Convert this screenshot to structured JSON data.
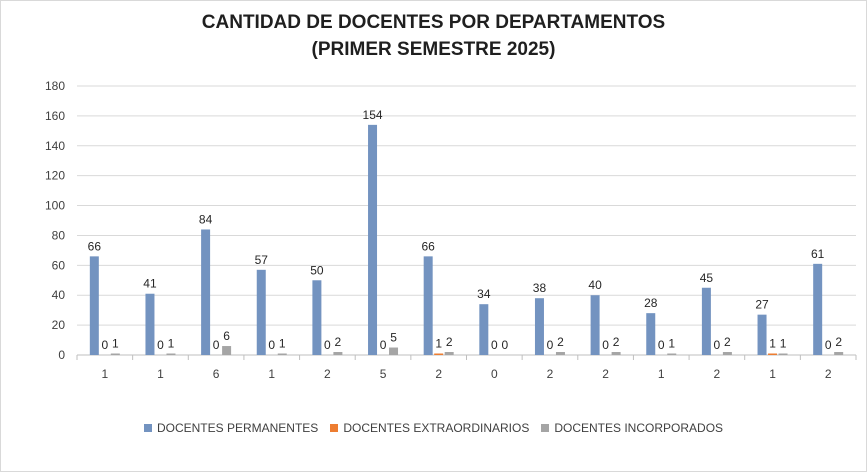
{
  "chart_data": {
    "type": "bar",
    "title": [
      "CANTIDAD DE DOCENTES POR DEPARTAMENTOS",
      "(PRIMER SEMESTRE 2025)"
    ],
    "categories": [
      "1",
      "1",
      "6",
      "1",
      "2",
      "5",
      "2",
      "0",
      "2",
      "2",
      "1",
      "2",
      "1",
      "2"
    ],
    "series": [
      {
        "name": "DOCENTES PERMANENTES",
        "color": "#7393c0",
        "values": [
          66,
          41,
          84,
          57,
          50,
          154,
          66,
          34,
          38,
          40,
          28,
          45,
          27,
          61
        ]
      },
      {
        "name": "DOCENTES EXTRAORDINARIOS",
        "color": "#ed7d31",
        "values": [
          0,
          0,
          0,
          0,
          0,
          0,
          1,
          0,
          0,
          0,
          0,
          0,
          1,
          0
        ]
      },
      {
        "name": "DOCENTES INCORPORADOS",
        "color": "#a5a5a5",
        "values": [
          1,
          1,
          6,
          1,
          2,
          5,
          2,
          0,
          2,
          2,
          1,
          2,
          1,
          2
        ]
      }
    ],
    "ylim": [
      0,
      180
    ],
    "yticks": [
      0,
      20,
      40,
      60,
      80,
      100,
      120,
      140,
      160,
      180
    ],
    "grid": true,
    "legend_position": "bottom",
    "xlabel": "",
    "ylabel": ""
  }
}
